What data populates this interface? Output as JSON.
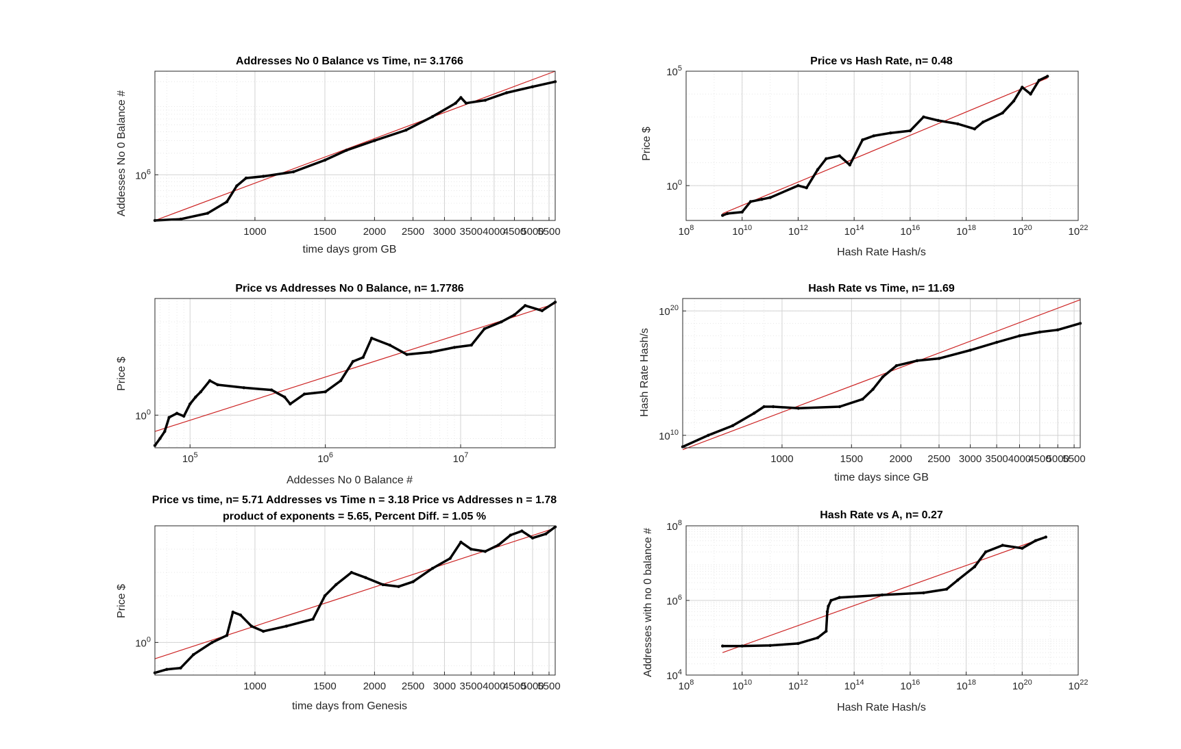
{
  "colors": {
    "data": "#000000",
    "fit": "#cc2222",
    "grid": "#d2d2d2",
    "minor_grid": "#e6e6e6",
    "axis": "#262626"
  },
  "chart_data": [
    {
      "type": "line",
      "title": "Addresses No 0 Balance vs Time, n= 3.1766",
      "xlabel": "time days grom GB",
      "ylabel": "Addesses No 0 Balance #",
      "xscale": "log",
      "yscale": "log",
      "xlim": [
        560,
        5700
      ],
      "ylim": [
        230000,
        28000000
      ],
      "grid": true,
      "xticks": [
        1000,
        1500,
        2000,
        2500,
        3000,
        3500,
        4000,
        4500,
        5000,
        5500
      ],
      "xticklabels": [
        "1000",
        "1500",
        "2000",
        "2500",
        "3000",
        "3500",
        "4000",
        "4500",
        "5000",
        "5500"
      ],
      "yticks": [
        1000000
      ],
      "yticklabels": [
        {
          "base": "10",
          "exp": "6"
        }
      ],
      "series": [
        {
          "points": [
            [
              560,
              230000
            ],
            [
              650,
              240000
            ],
            [
              760,
              290000
            ],
            [
              850,
              420000
            ],
            [
              900,
              700000
            ],
            [
              950,
              900000
            ],
            [
              1050,
              950000
            ],
            [
              1250,
              1100000
            ],
            [
              1500,
              1600000
            ],
            [
              1700,
              2200000
            ],
            [
              2000,
              3000000
            ],
            [
              2400,
              4200000
            ],
            [
              2800,
              6500000
            ],
            [
              3200,
              10000000
            ],
            [
              3300,
              12000000
            ],
            [
              3400,
              10000000
            ],
            [
              3800,
              11000000
            ],
            [
              4300,
              14000000
            ],
            [
              5000,
              17000000
            ],
            [
              5700,
              20000000
            ]
          ]
        }
      ],
      "fit": {
        "points": [
          [
            560,
            230000
          ],
          [
            5700,
            28000000
          ]
        ]
      }
    },
    {
      "type": "scatter",
      "title": "Price vs Hash Rate, n= 0.48",
      "xlabel": "Hash Rate Hash/s",
      "ylabel": "Price $",
      "xscale": "log",
      "yscale": "log",
      "xlim": [
        100000000,
        10000000000000000000000
      ],
      "ylim": [
        0.03,
        100000
      ],
      "grid": true,
      "xticks": [
        100000000,
        10000000000,
        1000000000000,
        100000000000000,
        10000000000000000,
        1000000000000000000,
        100000000000000000000,
        10000000000000000000000
      ],
      "xticklabels": [
        {
          "base": "10",
          "exp": "8"
        },
        {
          "base": "10",
          "exp": "10"
        },
        {
          "base": "10",
          "exp": "12"
        },
        {
          "base": "10",
          "exp": "14"
        },
        {
          "base": "10",
          "exp": "16"
        },
        {
          "base": "10",
          "exp": "18"
        },
        {
          "base": "10",
          "exp": "20"
        },
        {
          "base": "10",
          "exp": "22"
        }
      ],
      "yticks": [
        1,
        100000
      ],
      "yticklabels": [
        {
          "base": "10",
          "exp": "0"
        },
        {
          "base": "10",
          "exp": "5"
        }
      ],
      "series": [
        {
          "points": [
            [
              2000000000,
              0.05
            ],
            [
              3000000000,
              0.06
            ],
            [
              10000000000,
              0.07
            ],
            [
              20000000000,
              0.2
            ],
            [
              50000000000,
              0.25
            ],
            [
              100000000000,
              0.3
            ],
            [
              1000000000000,
              1
            ],
            [
              2000000000000,
              0.8
            ],
            [
              5000000000000,
              5
            ],
            [
              10000000000000,
              15
            ],
            [
              30000000000000,
              20
            ],
            [
              70000000000000,
              8
            ],
            [
              200000000000000,
              100
            ],
            [
              500000000000000,
              150
            ],
            [
              2000000000000000,
              200
            ],
            [
              10000000000000000,
              250
            ],
            [
              30000000000000000,
              1000
            ],
            [
              100000000000000000,
              700
            ],
            [
              500000000000000000,
              500
            ],
            [
              2000000000000000000,
              300
            ],
            [
              4000000000000000000,
              600
            ],
            [
              20000000000000000000,
              1500
            ],
            [
              50000000000000000000,
              5000
            ],
            [
              100000000000000000000,
              20000
            ],
            [
              200000000000000000000,
              10000
            ],
            [
              400000000000000000000,
              40000
            ],
            [
              800000000000000000000,
              60000
            ]
          ]
        }
      ],
      "fit": {
        "points": [
          [
            2000000000,
            0.06
          ],
          [
            800000000000000000000,
            50000
          ]
        ]
      }
    },
    {
      "type": "line",
      "title": "Price vs Addresses No 0 Balance, n= 1.7786",
      "xlabel": "Addesses No 0 Balance #",
      "ylabel": "Price $",
      "xscale": "log",
      "yscale": "log",
      "xlim": [
        55000,
        50000000
      ],
      "ylim": [
        0.04,
        100000
      ],
      "grid": true,
      "xticks": [
        100000,
        1000000,
        10000000
      ],
      "xticklabels": [
        {
          "base": "10",
          "exp": "5"
        },
        {
          "base": "10",
          "exp": "6"
        },
        {
          "base": "10",
          "exp": "7"
        }
      ],
      "yticks": [
        1
      ],
      "yticklabels": [
        {
          "base": "10",
          "exp": "0"
        }
      ],
      "series": [
        {
          "points": [
            [
              55000,
              0.05
            ],
            [
              60000,
              0.1
            ],
            [
              65000,
              0.2
            ],
            [
              70000,
              0.8
            ],
            [
              80000,
              1.2
            ],
            [
              90000,
              0.9
            ],
            [
              100000,
              3
            ],
            [
              110000,
              6
            ],
            [
              120000,
              10
            ],
            [
              140000,
              30
            ],
            [
              160000,
              20
            ],
            [
              250000,
              15
            ],
            [
              400000,
              12
            ],
            [
              500000,
              6
            ],
            [
              550000,
              3
            ],
            [
              700000,
              8
            ],
            [
              1000000,
              10
            ],
            [
              1300000,
              30
            ],
            [
              1600000,
              200
            ],
            [
              1900000,
              300
            ],
            [
              2200000,
              2000
            ],
            [
              3000000,
              1000
            ],
            [
              4000000,
              400
            ],
            [
              6000000,
              500
            ],
            [
              9000000,
              800
            ],
            [
              12000000,
              1000
            ],
            [
              15000000,
              5000
            ],
            [
              20000000,
              10000
            ],
            [
              25000000,
              20000
            ],
            [
              30000000,
              50000
            ],
            [
              40000000,
              30000
            ],
            [
              50000000,
              70000
            ]
          ]
        }
      ],
      "fit": {
        "points": [
          [
            55000,
            0.2
          ],
          [
            50000000,
            60000
          ]
        ]
      }
    },
    {
      "type": "line",
      "title": "Hash Rate vs Time, n= 11.69",
      "xlabel": "time days since GB",
      "ylabel": "Hash Rate Hash/s",
      "xscale": "log",
      "yscale": "log",
      "xlim": [
        560,
        5700
      ],
      "ylim": [
        1000000000,
        1000000000000000000000
      ],
      "grid": true,
      "xticks": [
        1000,
        1500,
        2000,
        2500,
        3000,
        3500,
        4000,
        4500,
        5000,
        5500
      ],
      "xticklabels": [
        "1000",
        "1500",
        "2000",
        "2500",
        "3000",
        "3500",
        "4000",
        "4500",
        "5000",
        "5500"
      ],
      "yticks": [
        10000000000,
        100000000000000000000
      ],
      "yticklabels": [
        {
          "base": "10",
          "exp": "10"
        },
        {
          "base": "10",
          "exp": "20"
        }
      ],
      "series": [
        {
          "points": [
            [
              560,
              1200000000
            ],
            [
              650,
              10000000000
            ],
            [
              750,
              60000000000
            ],
            [
              850,
              600000000000
            ],
            [
              900,
              2000000000000
            ],
            [
              950,
              2000000000000
            ],
            [
              1100,
              1500000000000
            ],
            [
              1400,
              2000000000000
            ],
            [
              1600,
              8000000000000
            ],
            [
              1700,
              50000000000000
            ],
            [
              1800,
              500000000000000
            ],
            [
              1950,
              4000000000000000
            ],
            [
              2200,
              10000000000000000
            ],
            [
              2500,
              15000000000000000
            ],
            [
              3000,
              70000000000000000
            ],
            [
              3500,
              300000000000000000
            ],
            [
              4000,
              1000000000000000000
            ],
            [
              4500,
              2000000000000000000
            ],
            [
              5000,
              3000000000000000000
            ],
            [
              5700,
              10000000000000000000
            ]
          ]
        }
      ],
      "fit": {
        "points": [
          [
            560,
            700000000
          ],
          [
            5700,
            800000000000000000000
          ]
        ]
      }
    },
    {
      "type": "line",
      "title": "Price vs time, n= 5.71 Addresses vs Time n = 3.18 Price vs Addresses n = 1.78",
      "subtitle": "product of exponents = 5.65, Percent Diff. = 1.05 %",
      "xlabel": "time days from Genesis",
      "ylabel": "Price $",
      "xscale": "log",
      "yscale": "log",
      "xlim": [
        560,
        5700
      ],
      "ylim": [
        0.04,
        100000
      ],
      "grid": true,
      "xticks": [
        1000,
        1500,
        2000,
        2500,
        3000,
        3500,
        4000,
        4500,
        5000,
        5500
      ],
      "xticklabels": [
        "1000",
        "1500",
        "2000",
        "2500",
        "3000",
        "3500",
        "4000",
        "4500",
        "5000",
        "5500"
      ],
      "yticks": [
        1
      ],
      "yticklabels": [
        {
          "base": "10",
          "exp": "0"
        }
      ],
      "series": [
        {
          "points": [
            [
              560,
              0.05
            ],
            [
              600,
              0.07
            ],
            [
              650,
              0.08
            ],
            [
              700,
              0.3
            ],
            [
              780,
              1
            ],
            [
              850,
              2
            ],
            [
              880,
              20
            ],
            [
              920,
              15
            ],
            [
              980,
              5
            ],
            [
              1050,
              3
            ],
            [
              1200,
              5
            ],
            [
              1400,
              10
            ],
            [
              1500,
              100
            ],
            [
              1600,
              300
            ],
            [
              1750,
              1000
            ],
            [
              1900,
              600
            ],
            [
              2100,
              300
            ],
            [
              2300,
              250
            ],
            [
              2500,
              400
            ],
            [
              2800,
              1500
            ],
            [
              3100,
              4000
            ],
            [
              3300,
              20000
            ],
            [
              3500,
              10000
            ],
            [
              3800,
              8000
            ],
            [
              4100,
              15000
            ],
            [
              4400,
              40000
            ],
            [
              4700,
              60000
            ],
            [
              5000,
              30000
            ],
            [
              5400,
              45000
            ],
            [
              5700,
              90000
            ]
          ]
        }
      ],
      "fit": {
        "points": [
          [
            560,
            0.2
          ],
          [
            5700,
            80000
          ]
        ]
      }
    },
    {
      "type": "scatter",
      "title": "Hash Rate vs A, n= 0.27",
      "xlabel": "Hash Rate Hash/s",
      "ylabel": "Addresses with no 0 balance #",
      "xscale": "log",
      "yscale": "log",
      "xlim": [
        100000000,
        10000000000000000000000
      ],
      "ylim": [
        10000,
        100000000
      ],
      "grid": true,
      "xticks": [
        100000000,
        10000000000,
        1000000000000,
        100000000000000,
        10000000000000000,
        1000000000000000000,
        100000000000000000000,
        10000000000000000000000
      ],
      "xticklabels": [
        {
          "base": "10",
          "exp": "8"
        },
        {
          "base": "10",
          "exp": "10"
        },
        {
          "base": "10",
          "exp": "12"
        },
        {
          "base": "10",
          "exp": "14"
        },
        {
          "base": "10",
          "exp": "16"
        },
        {
          "base": "10",
          "exp": "18"
        },
        {
          "base": "10",
          "exp": "20"
        },
        {
          "base": "10",
          "exp": "22"
        }
      ],
      "yticks": [
        10000,
        1000000,
        100000000
      ],
      "yticklabels": [
        {
          "base": "10",
          "exp": "4"
        },
        {
          "base": "10",
          "exp": "6"
        },
        {
          "base": "10",
          "exp": "8"
        }
      ],
      "series": [
        {
          "points": [
            [
              2000000000,
              60000
            ],
            [
              10000000000,
              60000
            ],
            [
              100000000000,
              62000
            ],
            [
              1000000000000,
              70000
            ],
            [
              5000000000000,
              100000
            ],
            [
              10000000000000,
              150000
            ],
            [
              11000000000000,
              500000
            ],
            [
              12000000000000,
              700000
            ],
            [
              15000000000000,
              1000000
            ],
            [
              30000000000000,
              1200000
            ],
            [
              1000000000000000,
              1400000
            ],
            [
              30000000000000000,
              1600000
            ],
            [
              200000000000000000,
              2000000
            ],
            [
              500000000000000000,
              3500000
            ],
            [
              2000000000000000000,
              8000000
            ],
            [
              5000000000000000000,
              20000000
            ],
            [
              20000000000000000000,
              30000000
            ],
            [
              100000000000000000000,
              25000000
            ],
            [
              300000000000000000000,
              40000000
            ],
            [
              700000000000000000000,
              50000000
            ]
          ]
        }
      ],
      "fit": {
        "points": [
          [
            2000000000,
            40000
          ],
          [
            700000000000000000000,
            50000000
          ]
        ]
      }
    }
  ]
}
